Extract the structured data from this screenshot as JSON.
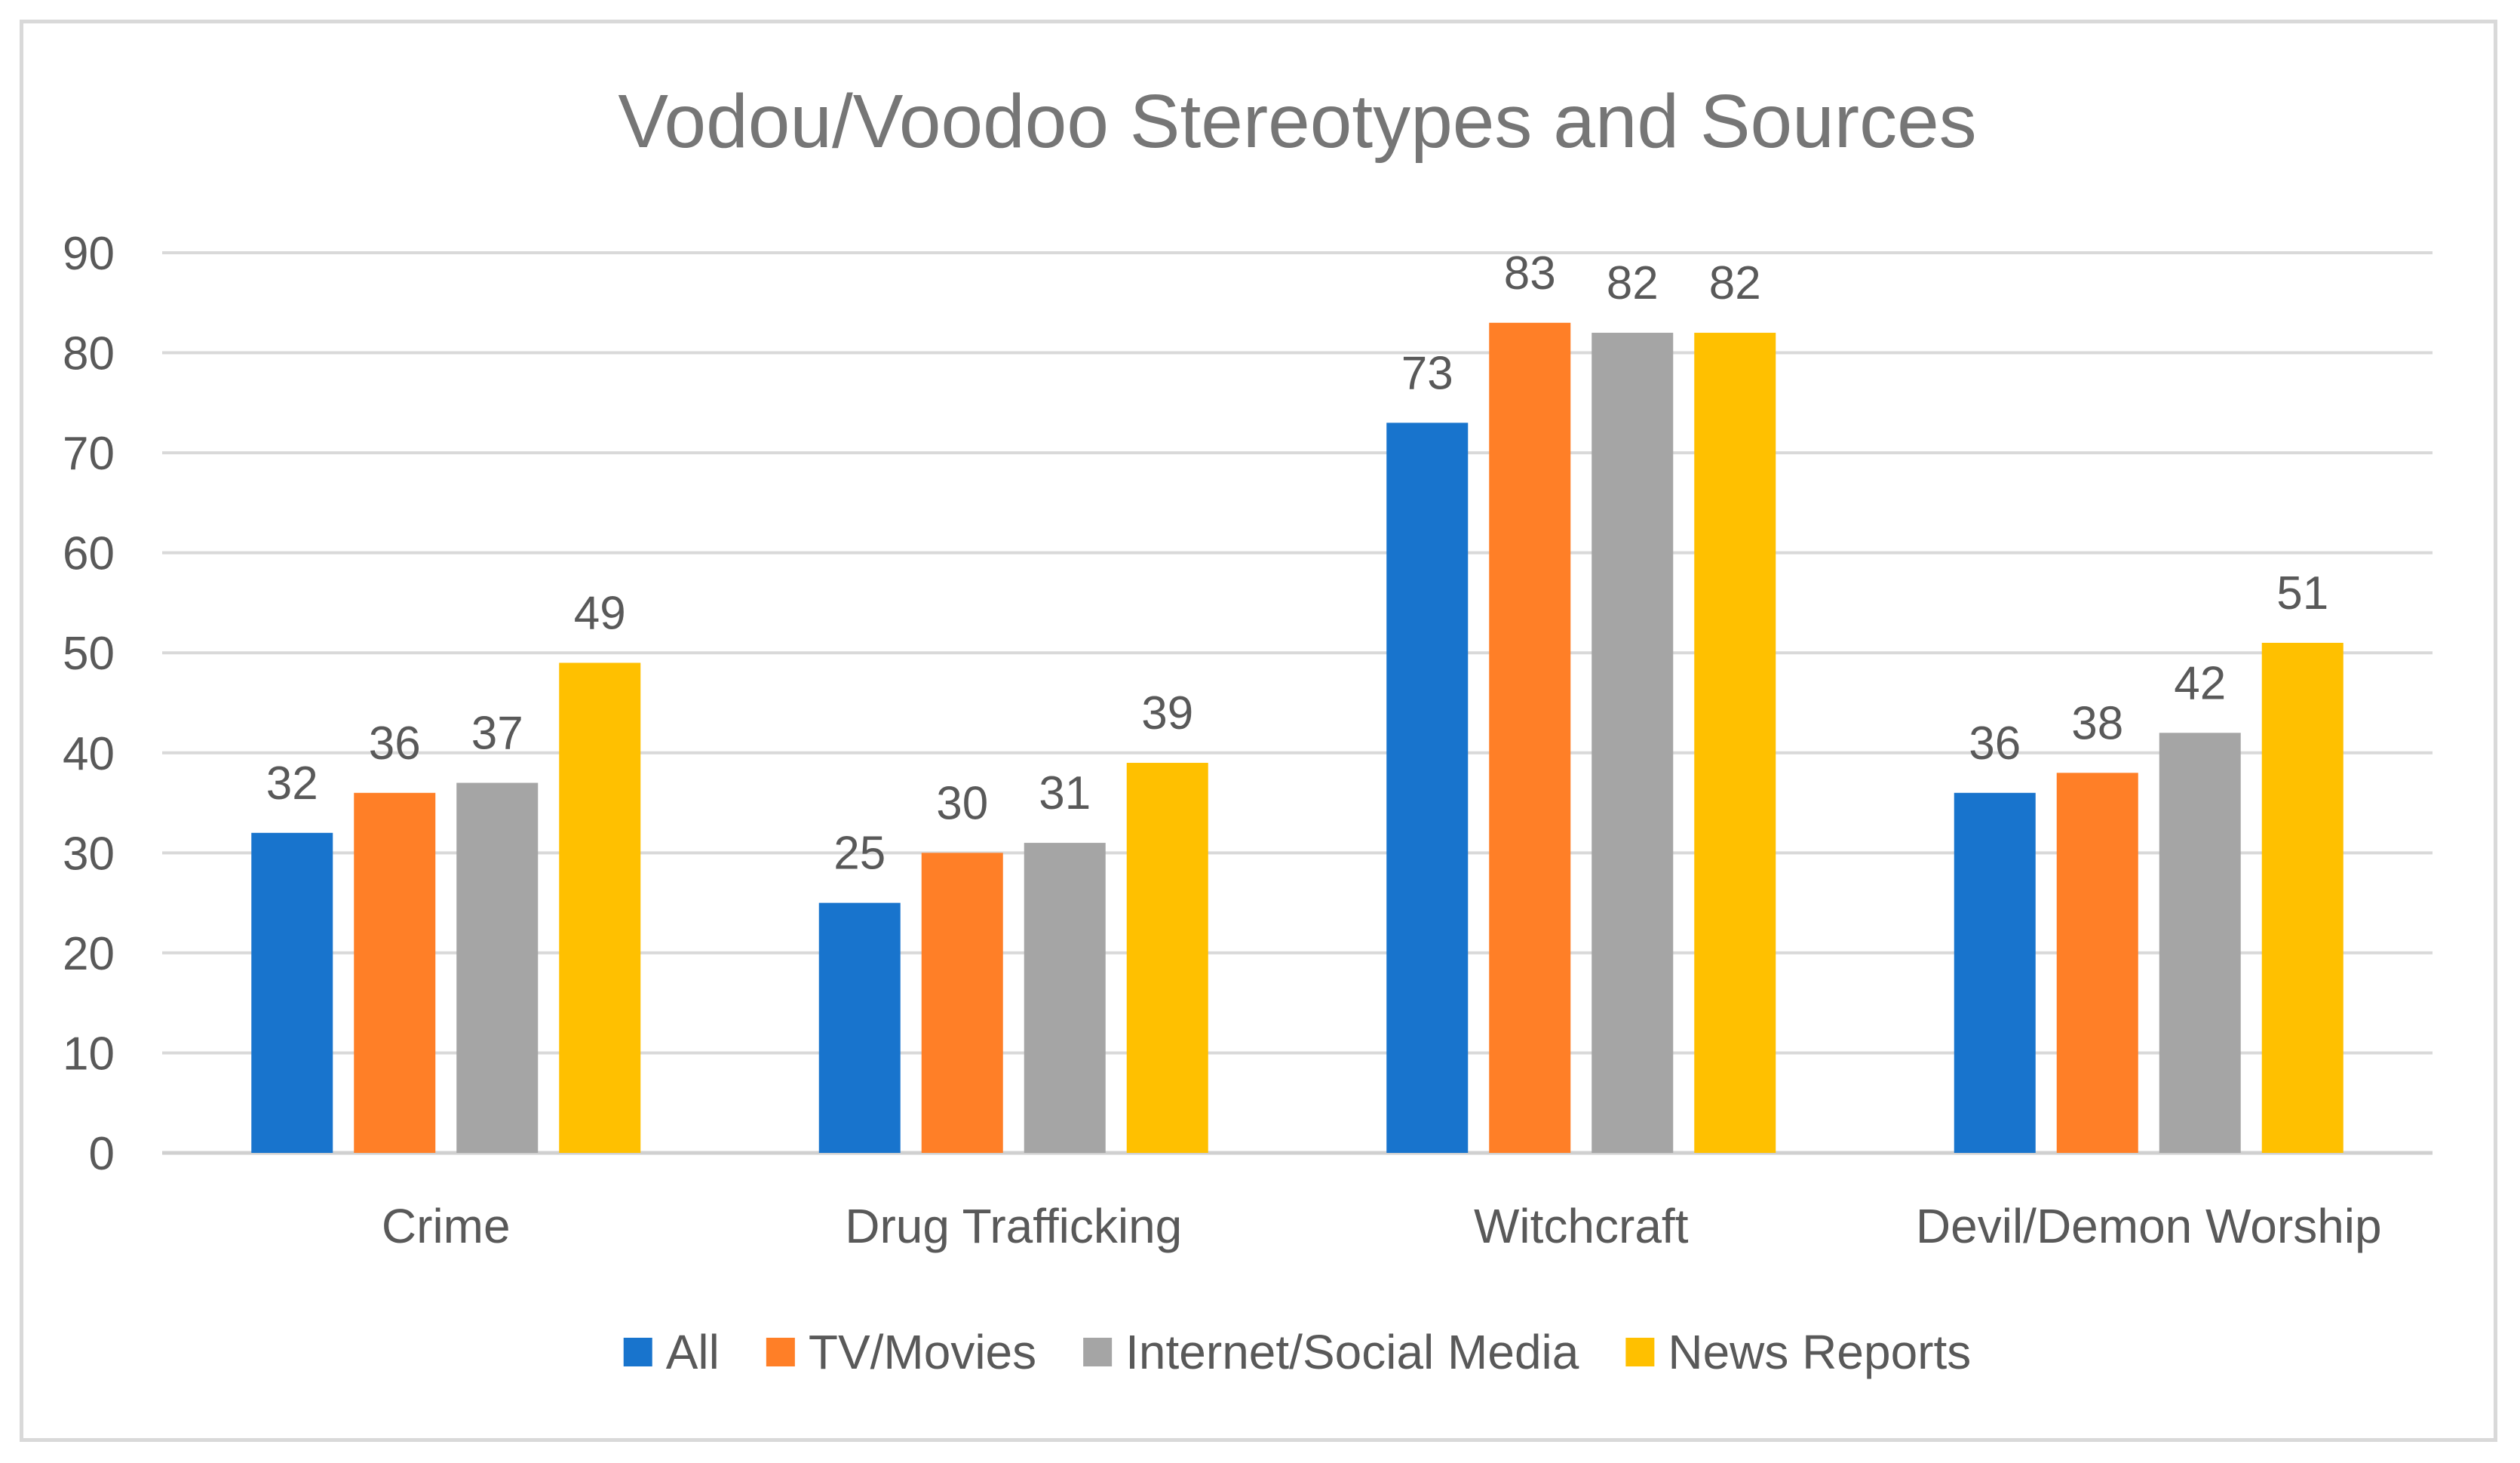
{
  "chart_data": {
    "type": "bar",
    "title": "Vodou/Voodoo Stereotypes and Sources",
    "xlabel": "",
    "ylabel": "",
    "ylim": [
      0,
      90
    ],
    "yticks": [
      0,
      10,
      20,
      30,
      40,
      50,
      60,
      70,
      80,
      90
    ],
    "categories": [
      "Crime",
      "Drug Trafficking",
      "Witchcraft",
      "Devil/Demon Worship"
    ],
    "series": [
      {
        "name": "All",
        "color": "#1874CD",
        "values": [
          32,
          25,
          73,
          36
        ]
      },
      {
        "name": "TV/Movies",
        "color": "#FF7F27",
        "values": [
          36,
          30,
          83,
          38
        ]
      },
      {
        "name": "Internet/Social Media",
        "color": "#A5A5A5",
        "values": [
          37,
          31,
          82,
          42
        ]
      },
      {
        "name": "News Reports",
        "color": "#FFC000",
        "values": [
          49,
          39,
          82,
          51
        ]
      }
    ],
    "grid": true,
    "legend_position": "bottom",
    "data_labels": true
  }
}
